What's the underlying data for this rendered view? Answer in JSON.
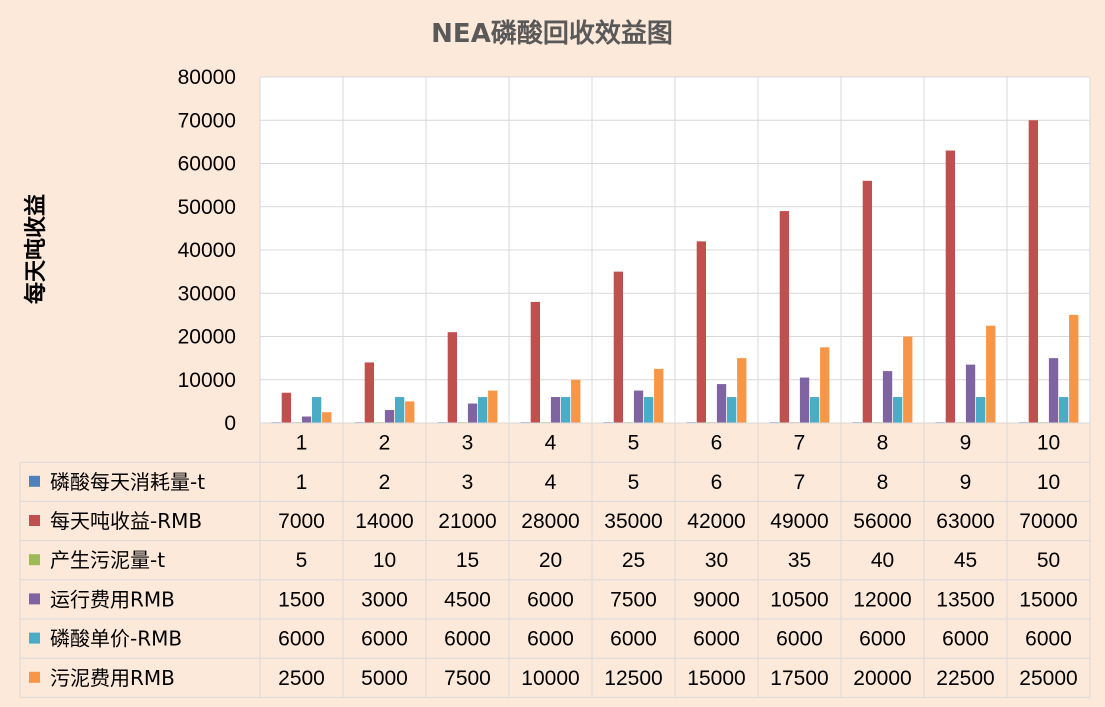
{
  "chart_data": {
    "type": "bar",
    "title": "NEA磷酸回收效益图",
    "ylabel": "每天吨收益",
    "xlabel": "",
    "ylim": [
      0,
      80000
    ],
    "yticks": [
      "0",
      "10000",
      "20000",
      "30000",
      "40000",
      "50000",
      "60000",
      "70000",
      "80000"
    ],
    "grid": true,
    "legend": "data-table",
    "categories": [
      "1",
      "2",
      "3",
      "4",
      "5",
      "6",
      "7",
      "8",
      "9",
      "10"
    ],
    "series": [
      {
        "name": "磷酸每天消耗量-t",
        "color": "#4f81bd",
        "values": [
          1,
          2,
          3,
          4,
          5,
          6,
          7,
          8,
          9,
          10
        ]
      },
      {
        "name": "每天吨收益-RMB",
        "color": "#c0504d",
        "values": [
          7000,
          14000,
          21000,
          28000,
          35000,
          42000,
          49000,
          56000,
          63000,
          70000
        ]
      },
      {
        "name": "产生污泥量-t",
        "color": "#9bbb59",
        "values": [
          5,
          10,
          15,
          20,
          25,
          30,
          35,
          40,
          45,
          50
        ]
      },
      {
        "name": "运行费用RMB",
        "color": "#8064a2",
        "values": [
          1500,
          3000,
          4500,
          6000,
          7500,
          9000,
          10500,
          12000,
          13500,
          15000
        ]
      },
      {
        "name": "磷酸单价-RMB",
        "color": "#4bacc6",
        "values": [
          6000,
          6000,
          6000,
          6000,
          6000,
          6000,
          6000,
          6000,
          6000,
          6000
        ]
      },
      {
        "name": "污泥费用RMB",
        "color": "#f79646",
        "values": [
          2500,
          5000,
          7500,
          10000,
          12500,
          15000,
          17500,
          20000,
          22500,
          25000
        ]
      }
    ]
  }
}
